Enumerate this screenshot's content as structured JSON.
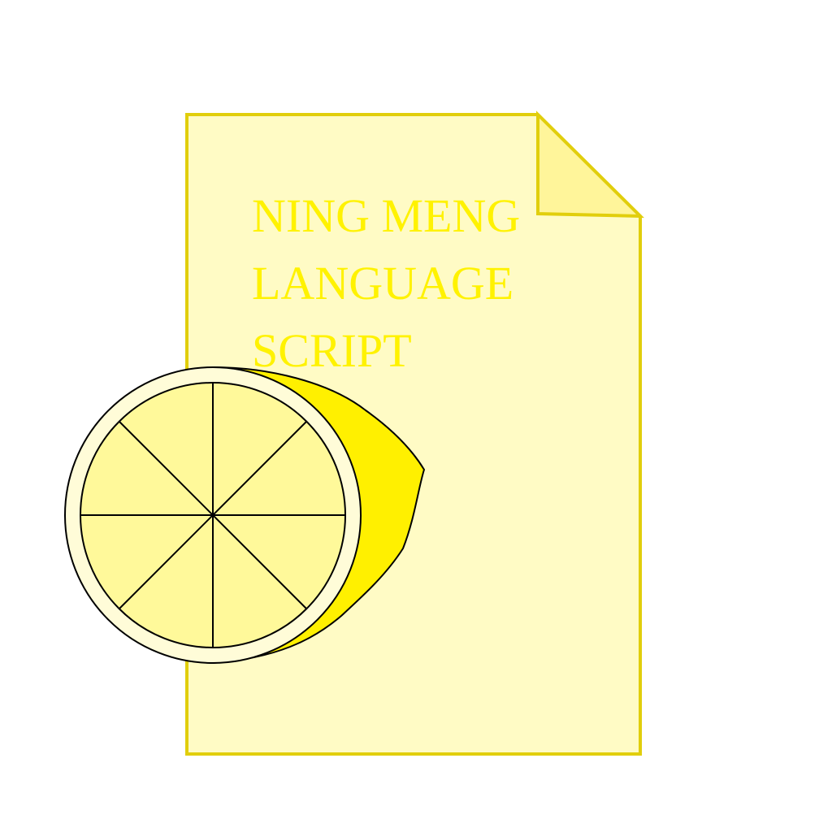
{
  "icon": {
    "name": "lemon-script-file-icon",
    "lines": [
      "NING MENG",
      "LANGUAGE",
      "SCRIPT"
    ]
  },
  "colors": {
    "page_fill": "#FFFBC5",
    "page_stroke": "#E1CE0C",
    "fold_fill": "#FFF59A",
    "text": "#FFF200",
    "lemon_rind": "#FFF000",
    "lemon_pith": "#FFFCD8",
    "lemon_flesh": "#FFF99A",
    "outline": "#000000"
  }
}
